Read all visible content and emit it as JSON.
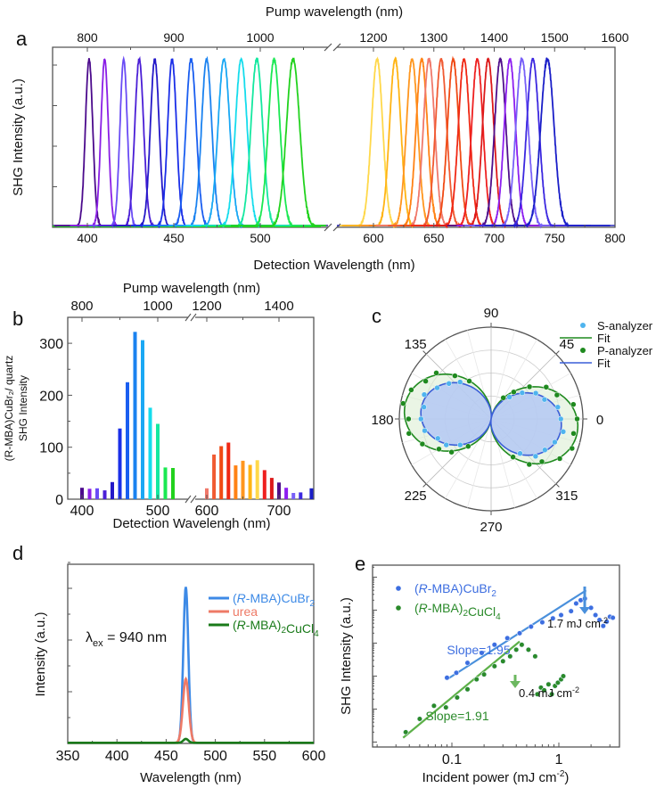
{
  "panels": {
    "a": {
      "label": "a",
      "top_axis_title": "Pump wavelength (nm)",
      "bottom_axis_title": "Detection Wavelength (nm)",
      "y_axis_title": "SHG Intensity (a.u.)"
    },
    "b": {
      "label": "b",
      "top_axis_title": "Pump wavelength (nm)",
      "bottom_axis_title": "Detection Wavelengh (nm)",
      "y_axis_title_line1": "(R-MBA)CuBr₂/ quartz",
      "y_axis_title_line2": "SHG Intensity"
    },
    "c": {
      "label": "c"
    },
    "d": {
      "label": "d",
      "annotation": "λ",
      "annotation_sub": "ex",
      "annotation_rest": " = 940 nm",
      "x_axis_title": "Wavelength (nm)",
      "y_axis_title": "Intensity (a.u.)"
    },
    "e": {
      "label": "e",
      "x_axis_title": "Incident power (mJ cm",
      "x_axis_title_sup": "-2",
      "x_axis_title_end": ")",
      "y_axis_title": "SHG Intensity (a.u.)"
    }
  },
  "chart_data": [
    {
      "id": "a",
      "type": "line",
      "title": "",
      "xlabel": "Detection Wavelength (nm)",
      "x2label": "Pump wavelength (nm)",
      "ylabel": "SHG Intensity (a.u.)",
      "x_segments": [
        [
          380,
          540
        ],
        [
          570,
          800
        ]
      ],
      "x_ticks": [
        400,
        450,
        500,
        600,
        650,
        700,
        750,
        800
      ],
      "x2_ticks": [
        800,
        900,
        1000,
        1200,
        1300,
        1400,
        1500,
        1600
      ],
      "ylim": [
        0,
        1.07
      ],
      "y_ticks_unlabeled": 4,
      "series": [
        {
          "peak": 401,
          "fwhm": 5,
          "color": "#4b0a8c"
        },
        {
          "peak": 410,
          "fwhm": 5,
          "color": "#8a1ee6"
        },
        {
          "peak": 421,
          "fwhm": 5,
          "color": "#6a4cf5"
        },
        {
          "peak": 430,
          "fwhm": 6,
          "color": "#4a1ed6"
        },
        {
          "peak": 439,
          "fwhm": 6,
          "color": "#2418c8"
        },
        {
          "peak": 449,
          "fwhm": 6,
          "color": "#1a2ee8"
        },
        {
          "peak": 460,
          "fwhm": 7,
          "color": "#1a5ef0"
        },
        {
          "peak": 469,
          "fwhm": 7,
          "color": "#1a82f0"
        },
        {
          "peak": 479,
          "fwhm": 8,
          "color": "#1aa8f4"
        },
        {
          "peak": 489,
          "fwhm": 8,
          "color": "#14dcec"
        },
        {
          "peak": 498,
          "fwhm": 8,
          "color": "#14e8a0"
        },
        {
          "peak": 508,
          "fwhm": 8,
          "color": "#1ae852"
        },
        {
          "peak": 519,
          "fwhm": 9,
          "color": "#22d21e"
        },
        {
          "peak": 603,
          "fwhm": 11,
          "color": "#ffd84a"
        },
        {
          "peak": 618,
          "fwhm": 11,
          "color": "#ffb414"
        },
        {
          "peak": 632,
          "fwhm": 11,
          "color": "#ff961e"
        },
        {
          "peak": 640,
          "fwhm": 11,
          "color": "#ff8214"
        },
        {
          "peak": 646,
          "fwhm": 11,
          "color": "#f0786a"
        },
        {
          "peak": 656,
          "fwhm": 11,
          "color": "#f05a32"
        },
        {
          "peak": 666,
          "fwhm": 11,
          "color": "#f04a14"
        },
        {
          "peak": 675,
          "fwhm": 11,
          "color": "#f02814"
        },
        {
          "peak": 686,
          "fwhm": 11,
          "color": "#ee2020"
        },
        {
          "peak": 695,
          "fwhm": 11,
          "color": "#dc1a1a"
        },
        {
          "peak": 705,
          "fwhm": 11,
          "color": "#50108c"
        },
        {
          "peak": 713,
          "fwhm": 11,
          "color": "#8c1ef0"
        },
        {
          "peak": 723,
          "fwhm": 12,
          "color": "#7860f8"
        },
        {
          "peak": 732,
          "fwhm": 12,
          "color": "#3c28e0"
        },
        {
          "peak": 744,
          "fwhm": 13,
          "color": "#1a1ec8"
        }
      ]
    },
    {
      "id": "b",
      "type": "bar",
      "xlabel": "Detection Wavelengh (nm)",
      "x2label": "Pump wavelength (nm)",
      "ylabel": "(R-MBA)CuBr2/ quartz SHG Intensity",
      "x_segments": [
        [
          380,
          540
        ],
        [
          580,
          750
        ]
      ],
      "x_ticks": [
        400,
        500,
        600,
        700
      ],
      "x2_ticks": [
        800,
        1000,
        1200,
        1400
      ],
      "ylim": [
        0,
        350
      ],
      "y_ticks": [
        0,
        100,
        200,
        300
      ],
      "categories": [
        400,
        410,
        420,
        430,
        440,
        450,
        460,
        470,
        480,
        490,
        500,
        510,
        520,
        600,
        610,
        620,
        630,
        640,
        650,
        660,
        670,
        680,
        690,
        700,
        710,
        720,
        730,
        745
      ],
      "values": [
        22,
        20,
        21,
        17,
        33,
        136,
        225,
        322,
        306,
        176,
        145,
        61,
        60,
        21,
        86,
        102,
        109,
        65,
        74,
        66,
        75,
        56,
        41,
        32,
        22,
        12,
        13,
        21
      ],
      "colors": [
        "#4b0a8c",
        "#8a1ee6",
        "#6a4cf5",
        "#4a1ed6",
        "#2418c8",
        "#1a2ee8",
        "#1a5ef0",
        "#1a82f0",
        "#1aa8f4",
        "#14dcec",
        "#14e8a0",
        "#1ae852",
        "#22d21e",
        "#f0786a",
        "#f05a32",
        "#f04a14",
        "#f02814",
        "#ff8214",
        "#ff961e",
        "#ffb414",
        "#ffd84a",
        "#ee2020",
        "#dc1a1a",
        "#50108c",
        "#8c1ef0",
        "#7860f8",
        "#3c28e0",
        "#1a1ec8"
      ]
    },
    {
      "id": "c",
      "type": "scatter",
      "polar": true,
      "theta_ticks": [
        0,
        45,
        90,
        135,
        180,
        225,
        270,
        315
      ],
      "rlim": [
        0,
        1
      ],
      "r_grid": [
        0.25,
        0.5,
        0.75,
        1
      ],
      "legend_position": "top-right",
      "legend": [
        {
          "label": "S-analyzer",
          "kind": "marker",
          "color": "#4fb4ee"
        },
        {
          "label": "Fit",
          "kind": "line",
          "color": "#1f8a1f"
        },
        {
          "label": "P-analyzer",
          "kind": "marker",
          "color": "#1f8a1f"
        },
        {
          "label": "Fit",
          "kind": "line",
          "color": "#3a5ed8"
        }
      ],
      "series": [
        {
          "name": "P-analyzer",
          "amplitude": 0.95,
          "tilt_deg": -8,
          "color": "#1f8a1f",
          "fill": "#d8ecd0",
          "theta_points_deg": [
            0,
            10,
            20,
            30,
            40,
            50,
            60,
            120,
            130,
            140,
            150,
            160,
            170,
            180,
            190,
            200,
            210,
            220,
            230,
            300,
            310,
            320,
            330,
            340,
            350
          ]
        },
        {
          "name": "S-analyzer",
          "amplitude": 0.77,
          "tilt_deg": -8,
          "color": "#4fb4ee",
          "fill": "#b4c8f4",
          "fit_color": "#3a5ed8",
          "theta_points_deg": [
            0,
            10,
            20,
            30,
            40,
            50,
            130,
            140,
            150,
            160,
            170,
            180,
            190,
            200,
            210,
            220,
            310,
            320,
            330,
            340,
            350
          ]
        }
      ]
    },
    {
      "id": "d",
      "type": "line",
      "xlabel": "Wavelength (nm)",
      "ylabel": "Intensity (a.u.)",
      "xlim": [
        350,
        600
      ],
      "x_ticks": [
        350,
        400,
        450,
        500,
        550,
        600
      ],
      "ylim": [
        0,
        1.15
      ],
      "legend_position": "top-right",
      "series": [
        {
          "name": "(R-MBA)CuBr2",
          "peak": 470,
          "height": 1.0,
          "fwhm": 6,
          "color": "#3d8ae6"
        },
        {
          "name": "urea",
          "peak": 470,
          "height": 0.41,
          "fwhm": 7,
          "color": "#ee7a66"
        },
        {
          "name": "(R-MBA)2CuCl4",
          "peak": 470,
          "height": 0.025,
          "fwhm": 6,
          "color": "#1a7a1a"
        }
      ],
      "annotation": "λex = 940 nm"
    },
    {
      "id": "e",
      "type": "scatter",
      "xlabel": "Incident power (mJ cm-2)",
      "ylabel": "SHG Intensity (a.u.)",
      "xscale": "log",
      "yscale": "log",
      "xlim": [
        0.018,
        3.8
      ],
      "ylim_log10": [
        0,
        5.5
      ],
      "x_ticks": [
        0.1,
        1
      ],
      "legend_position": "top-left",
      "series": [
        {
          "name": "(R-MBA)CuBr2",
          "color": "#3d6ee0",
          "fit_color": "#4a90dc",
          "x": [
            0.09,
            0.11,
            0.14,
            0.19,
            0.25,
            0.33,
            0.43,
            0.55,
            0.7,
            0.88,
            1.05,
            1.3,
            1.45,
            1.6,
            1.75,
            2.0,
            2.2,
            2.4,
            2.6,
            2.8,
            3.0,
            3.2
          ],
          "y_log10": [
            2.1,
            2.25,
            2.55,
            2.85,
            3.1,
            3.3,
            3.45,
            3.65,
            3.78,
            3.9,
            4.0,
            4.12,
            4.35,
            4.45,
            4.5,
            4.22,
            4.0,
            3.85,
            3.67,
            3.8,
            3.95,
            3.92
          ],
          "fit": {
            "x": [
              0.09,
              1.8
            ],
            "y_log10": [
              2.05,
              4.75
            ]
          },
          "slope": 1.95,
          "slope_label": "Slope=1.95",
          "arrow_label": "1.7 mJ cm",
          "arrow_label_sup": "-2"
        },
        {
          "name": "(R-MBA)2CuCl4",
          "color": "#2a8a2a",
          "fit_color": "#5cb048",
          "x": [
            0.037,
            0.05,
            0.068,
            0.088,
            0.112,
            0.14,
            0.17,
            0.2,
            0.25,
            0.3,
            0.35,
            0.4,
            0.45,
            0.52,
            0.6,
            0.63,
            0.68,
            0.73,
            0.8,
            0.86,
            0.92,
            0.98,
            1.05,
            1.1
          ],
          "y_log10": [
            0.45,
            0.85,
            1.25,
            1.2,
            1.5,
            1.75,
            2.05,
            2.2,
            2.45,
            2.6,
            2.75,
            2.95,
            3.1,
            2.95,
            2.75,
            1.6,
            1.8,
            1.72,
            1.9,
            1.6,
            1.85,
            1.95,
            2.05,
            2.15
          ],
          "fit": {
            "x": [
              0.035,
              0.43
            ],
            "y_log10": [
              0.28,
              3.2
            ]
          },
          "slope": 1.91,
          "slope_label": "Slope=1.91",
          "arrow_label": "0.4 mJ cm",
          "arrow_label_sup": "-2"
        }
      ]
    }
  ]
}
